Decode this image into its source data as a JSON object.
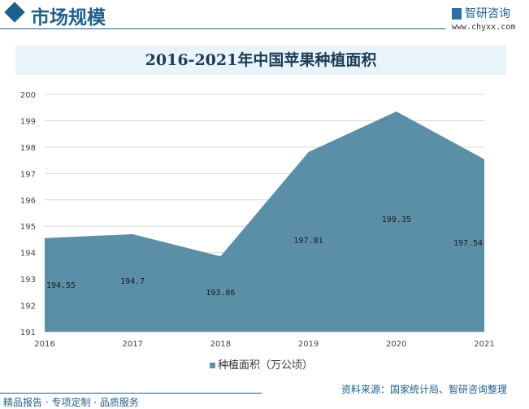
{
  "header": {
    "title": "市场规模",
    "logo_text": "智研咨询",
    "url": "www.chyxx.com"
  },
  "chart_data": {
    "type": "area",
    "title": "2016-2021年中国苹果种植面积",
    "categories": [
      "2016",
      "2017",
      "2018",
      "2019",
      "2020",
      "2021"
    ],
    "series": [
      {
        "name": "种植面积（万公顷）",
        "values": [
          194.55,
          194.7,
          193.86,
          197.81,
          199.35,
          197.54
        ],
        "color": "#5b8fa8"
      }
    ],
    "data_labels": [
      "194.55",
      "194.7",
      "193.86",
      "197.81",
      "199.35",
      "197.54"
    ],
    "ylim": [
      191,
      200
    ],
    "yticks": [
      "191",
      "192",
      "193",
      "194",
      "195",
      "196",
      "197",
      "198",
      "199",
      "200"
    ],
    "grid": true,
    "legend": "bottom"
  },
  "footer": {
    "source": "资料来源：国家统计局、智研咨询整理",
    "tagline": "精品报告 · 专项定制 · 品质服务",
    "logo_text": "智研咨询"
  }
}
